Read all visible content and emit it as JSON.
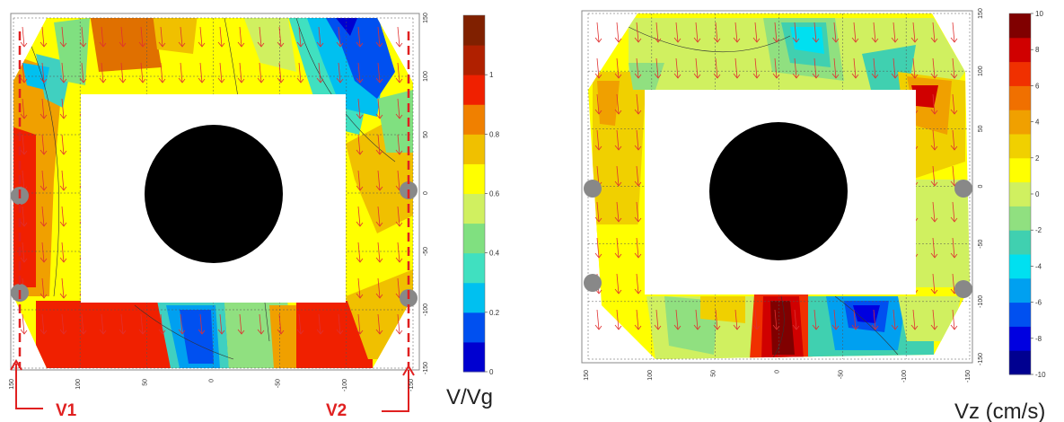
{
  "chart_data": [
    {
      "type": "heatmap",
      "unit_label": "V/Vg",
      "colorbar": {
        "min": 0,
        "max": 1.2,
        "ticks": [
          0,
          0.2,
          0.4,
          0.6,
          0.8,
          1
        ],
        "colors": [
          "#0000d0",
          "#0050f0",
          "#00c0f0",
          "#40e0c0",
          "#80e080",
          "#d0f060",
          "#ffff00",
          "#f0c000",
          "#f08000",
          "#f02000",
          "#b02000",
          "#802000"
        ]
      },
      "x_ticks": [
        150,
        100,
        50,
        0,
        -50,
        -100,
        -150
      ],
      "y_ticks": [
        150,
        100,
        50,
        0,
        -50,
        -100,
        -150
      ],
      "markers": [
        "V1",
        "V2"
      ]
    },
    {
      "type": "heatmap",
      "unit_label": "Vz (cm/s)",
      "colorbar": {
        "min": -10,
        "max": 10,
        "ticks": [
          10,
          8,
          6,
          4,
          2,
          0,
          -2,
          -4,
          -6,
          -8,
          -10
        ],
        "colors": [
          "#000090",
          "#0000e0",
          "#0050f0",
          "#00a0f0",
          "#00e0f0",
          "#40d0b0",
          "#90e080",
          "#d0f060",
          "#ffff00",
          "#f0d000",
          "#f0a000",
          "#f07000",
          "#f03000",
          "#d00000",
          "#800000"
        ]
      },
      "x_ticks": [
        150,
        100,
        50,
        0,
        -50,
        -100,
        -150
      ],
      "y_ticks": [
        150,
        100,
        50,
        0,
        -50,
        -100,
        -150
      ]
    }
  ]
}
